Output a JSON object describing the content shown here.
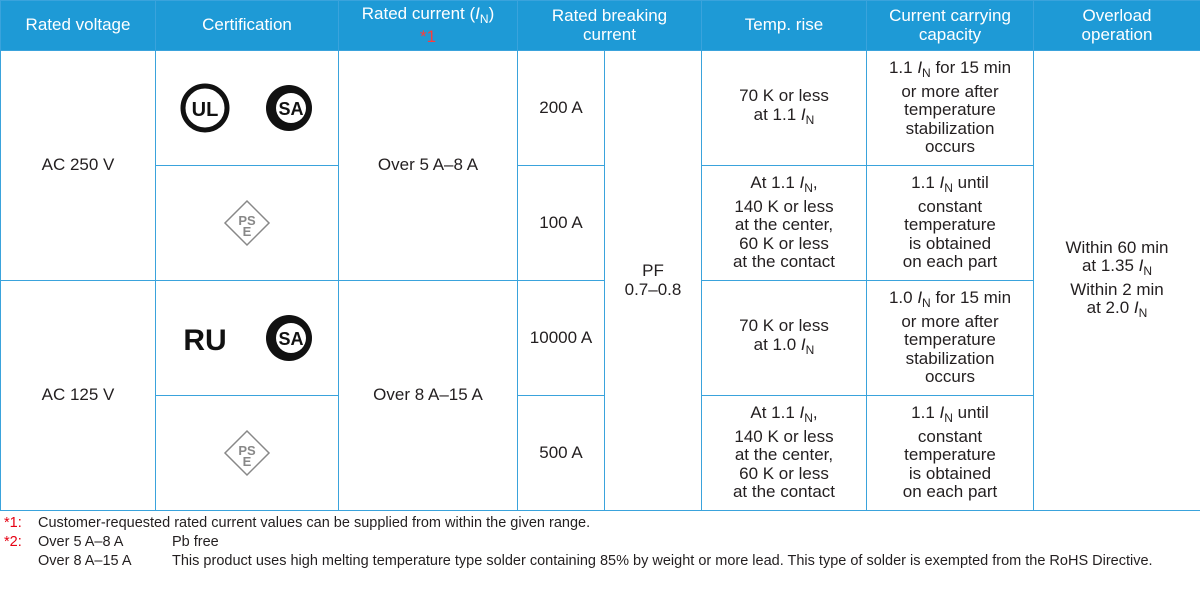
{
  "header": [
    [
      [
        "Rated voltage"
      ]
    ],
    [
      [
        "Certification"
      ]
    ],
    [
      [
        "Rated current (",
        {
          "italic": "I"
        },
        {
          "sub": "N"
        },
        ")"
      ],
      [
        {
          "ref": "*1"
        }
      ]
    ],
    [
      [
        "Rated breaking"
      ],
      [
        "current"
      ]
    ],
    [
      [
        "Temp. rise"
      ]
    ],
    [
      [
        "Current carrying"
      ],
      [
        "capacity"
      ]
    ],
    [
      [
        "Overload"
      ],
      [
        "operation"
      ]
    ]
  ],
  "groups": [
    {
      "voltage": "AC 250 V",
      "rated_current": "Over 5 A–8 A",
      "rows": [
        {
          "certification": [
            {
              "type": "ul",
              "text": "UL"
            },
            {
              "type": "csa",
              "text": "SA"
            }
          ],
          "breaking": "200 A",
          "temp_rise": [
            [
              "70 K or less"
            ],
            [
              "at 1.1 ",
              {
                "italic": "I"
              },
              {
                "sub": "N"
              }
            ]
          ],
          "capacity": [
            [
              "1.1 ",
              {
                "italic": "I"
              },
              {
                "sub": "N"
              },
              " for 15 min"
            ],
            [
              "or more after"
            ],
            [
              "temperature"
            ],
            [
              "stabilization"
            ],
            [
              "occurs"
            ]
          ]
        },
        {
          "certification": [
            {
              "type": "pse",
              "text": [
                "PS",
                "E"
              ]
            }
          ],
          "breaking": "100 A",
          "temp_rise": [
            [
              "At 1.1 ",
              {
                "italic": "I"
              },
              {
                "sub": "N"
              },
              ","
            ],
            [
              "140 K or less"
            ],
            [
              "at the center,"
            ],
            [
              "60 K or less"
            ],
            [
              "at the contact"
            ]
          ],
          "capacity": [
            [
              "1.1 ",
              {
                "italic": "I"
              },
              {
                "sub": "N"
              },
              " until"
            ],
            [
              "constant"
            ],
            [
              "temperature"
            ],
            [
              "is obtained"
            ],
            [
              "on each part"
            ]
          ]
        }
      ]
    },
    {
      "voltage": "AC 125 V",
      "rated_current": "Over 8 A–15 A",
      "rows": [
        {
          "certification": [
            {
              "type": "ur",
              "text": "RU"
            },
            {
              "type": "csa",
              "text": "SA"
            }
          ],
          "breaking": "10000 A",
          "temp_rise": [
            [
              "70 K or less"
            ],
            [
              "at 1.0 ",
              {
                "italic": "I"
              },
              {
                "sub": "N"
              }
            ]
          ],
          "capacity": [
            [
              "1.0 ",
              {
                "italic": "I"
              },
              {
                "sub": "N"
              },
              " for 15 min"
            ],
            [
              "or more after"
            ],
            [
              "temperature"
            ],
            [
              "stabilization"
            ],
            [
              "occurs"
            ]
          ]
        },
        {
          "certification": [
            {
              "type": "pse",
              "text": [
                "PS",
                "E"
              ]
            }
          ],
          "breaking": "500 A",
          "temp_rise": [
            [
              "At 1.1 ",
              {
                "italic": "I"
              },
              {
                "sub": "N"
              },
              ","
            ],
            [
              "140 K or less"
            ],
            [
              "at the center,"
            ],
            [
              "60 K or less"
            ],
            [
              "at the contact"
            ]
          ],
          "capacity": [
            [
              "1.1 ",
              {
                "italic": "I"
              },
              {
                "sub": "N"
              },
              " until"
            ],
            [
              "constant"
            ],
            [
              "temperature"
            ],
            [
              "is obtained"
            ],
            [
              "on each part"
            ]
          ]
        }
      ]
    }
  ],
  "power_factor": [
    [
      "PF"
    ],
    [
      "0.7–0.8"
    ]
  ],
  "overload": [
    [
      "Within 60 min"
    ],
    [
      "at 1.35 ",
      {
        "italic": "I"
      },
      {
        "sub": "N"
      }
    ],
    [
      "Within 2 min"
    ],
    [
      "at 2.0 ",
      {
        "italic": "I"
      },
      {
        "sub": "N"
      }
    ]
  ],
  "footnotes": [
    {
      "mark": "*1:",
      "items": [
        {
          "label": "",
          "text": "Customer-requested rated current values can be supplied from within the given range."
        }
      ]
    },
    {
      "mark": "*2:",
      "items": [
        {
          "label": "Over 5 A–8 A",
          "text": "Pb free"
        },
        {
          "label": "Over 8 A–15 A",
          "text": "This product uses high melting temperature type solder containing 85% by weight or more lead. This type of solder is exempted from the RoHS Directive."
        }
      ]
    }
  ]
}
